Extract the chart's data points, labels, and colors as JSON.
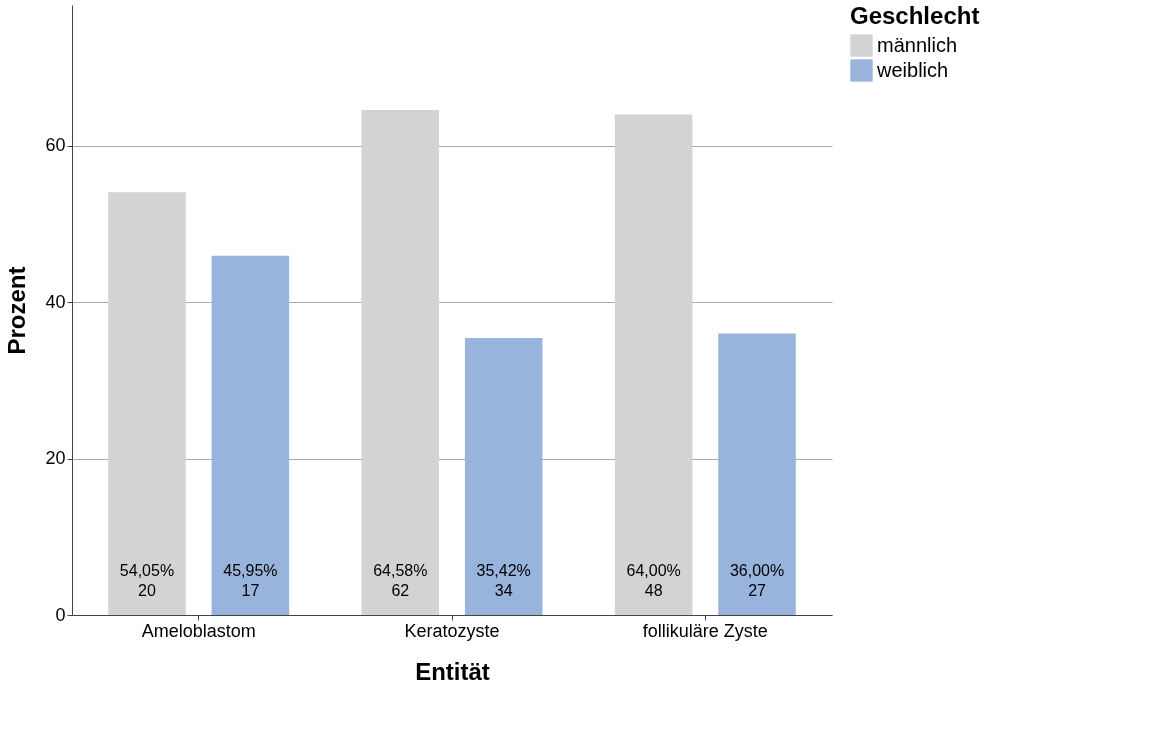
{
  "chart_data": {
    "type": "bar",
    "xlabel": "Entität",
    "ylabel": "Prozent",
    "legend_title": "Geschlecht",
    "categories": [
      "Ameloblastom",
      "Keratozyste",
      "follikuläre Zyste"
    ],
    "series": [
      {
        "name": "männlich",
        "color": "#d3d3d3",
        "values": [
          54.05,
          64.58,
          64.0
        ],
        "value_labels": [
          "54,05%\n20",
          "64,58%\n62",
          "64,00%\n48"
        ]
      },
      {
        "name": "weiblich",
        "color": "#98b3dc",
        "values": [
          45.95,
          35.42,
          36.0
        ],
        "value_labels": [
          "45,95%\n17",
          "35,42%\n34",
          "36,00%\n27"
        ]
      }
    ],
    "ylim": [
      0,
      78
    ],
    "yticks": [
      0,
      20,
      40,
      60
    ],
    "grid": "y",
    "legend": "top right"
  }
}
